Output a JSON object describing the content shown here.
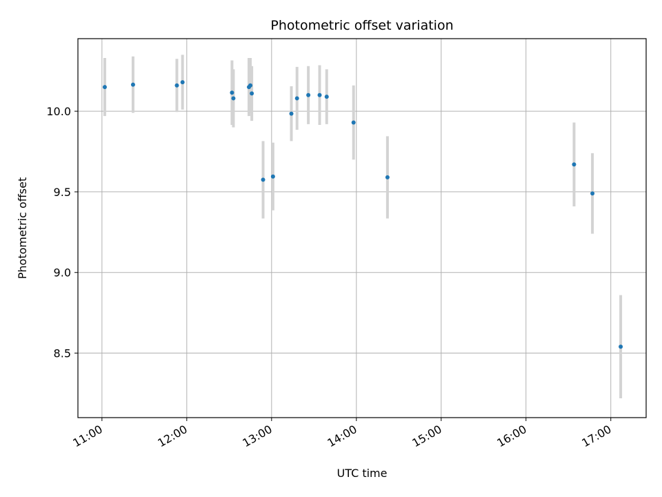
{
  "chart_data": {
    "type": "scatter",
    "title": "Photometric offset variation",
    "xlabel": "UTC time",
    "ylabel": "Photometric offset",
    "x_tick_labels": [
      "11:00",
      "12:00",
      "13:00",
      "14:00",
      "15:00",
      "16:00",
      "17:00"
    ],
    "y_tick_labels": [
      "8.5",
      "9.0",
      "9.5",
      "10.0"
    ],
    "x_ticks": [
      "11:00",
      "12:00",
      "13:00",
      "14:00",
      "15:00",
      "16:00",
      "17:00"
    ],
    "y_ticks": [
      8.5,
      9.0,
      9.5,
      10.0
    ],
    "xlim": [
      "10:43",
      "17:25"
    ],
    "ylim": [
      8.1,
      10.45
    ],
    "grid": true,
    "series": [
      {
        "marker_color": "#1f77b4",
        "errorbar_color": "#d3d3d3",
        "points": [
          {
            "x": "11:02",
            "y": 10.15,
            "err": 0.18
          },
          {
            "x": "11:22",
            "y": 10.165,
            "err": 0.175
          },
          {
            "x": "11:53",
            "y": 10.16,
            "err": 0.165
          },
          {
            "x": "11:57",
            "y": 10.18,
            "err": 0.17
          },
          {
            "x": "12:32",
            "y": 10.115,
            "err": 0.2
          },
          {
            "x": "12:33",
            "y": 10.08,
            "err": 0.18
          },
          {
            "x": "12:44",
            "y": 10.15,
            "err": 0.18
          },
          {
            "x": "12:45",
            "y": 10.16,
            "err": 0.17
          },
          {
            "x": "12:46",
            "y": 10.11,
            "err": 0.17
          },
          {
            "x": "12:54",
            "y": 9.575,
            "err": 0.24
          },
          {
            "x": "13:01",
            "y": 9.595,
            "err": 0.21
          },
          {
            "x": "13:14",
            "y": 9.985,
            "err": 0.17
          },
          {
            "x": "13:18",
            "y": 10.08,
            "err": 0.195
          },
          {
            "x": "13:26",
            "y": 10.1,
            "err": 0.18
          },
          {
            "x": "13:34",
            "y": 10.1,
            "err": 0.185
          },
          {
            "x": "13:39",
            "y": 10.09,
            "err": 0.17
          },
          {
            "x": "13:58",
            "y": 9.93,
            "err": 0.23
          },
          {
            "x": "14:22",
            "y": 9.59,
            "err": 0.255
          },
          {
            "x": "16:34",
            "y": 9.67,
            "err": 0.26
          },
          {
            "x": "16:47",
            "y": 9.49,
            "err": 0.25
          },
          {
            "x": "17:07",
            "y": 8.54,
            "err": 0.32
          }
        ]
      }
    ]
  }
}
